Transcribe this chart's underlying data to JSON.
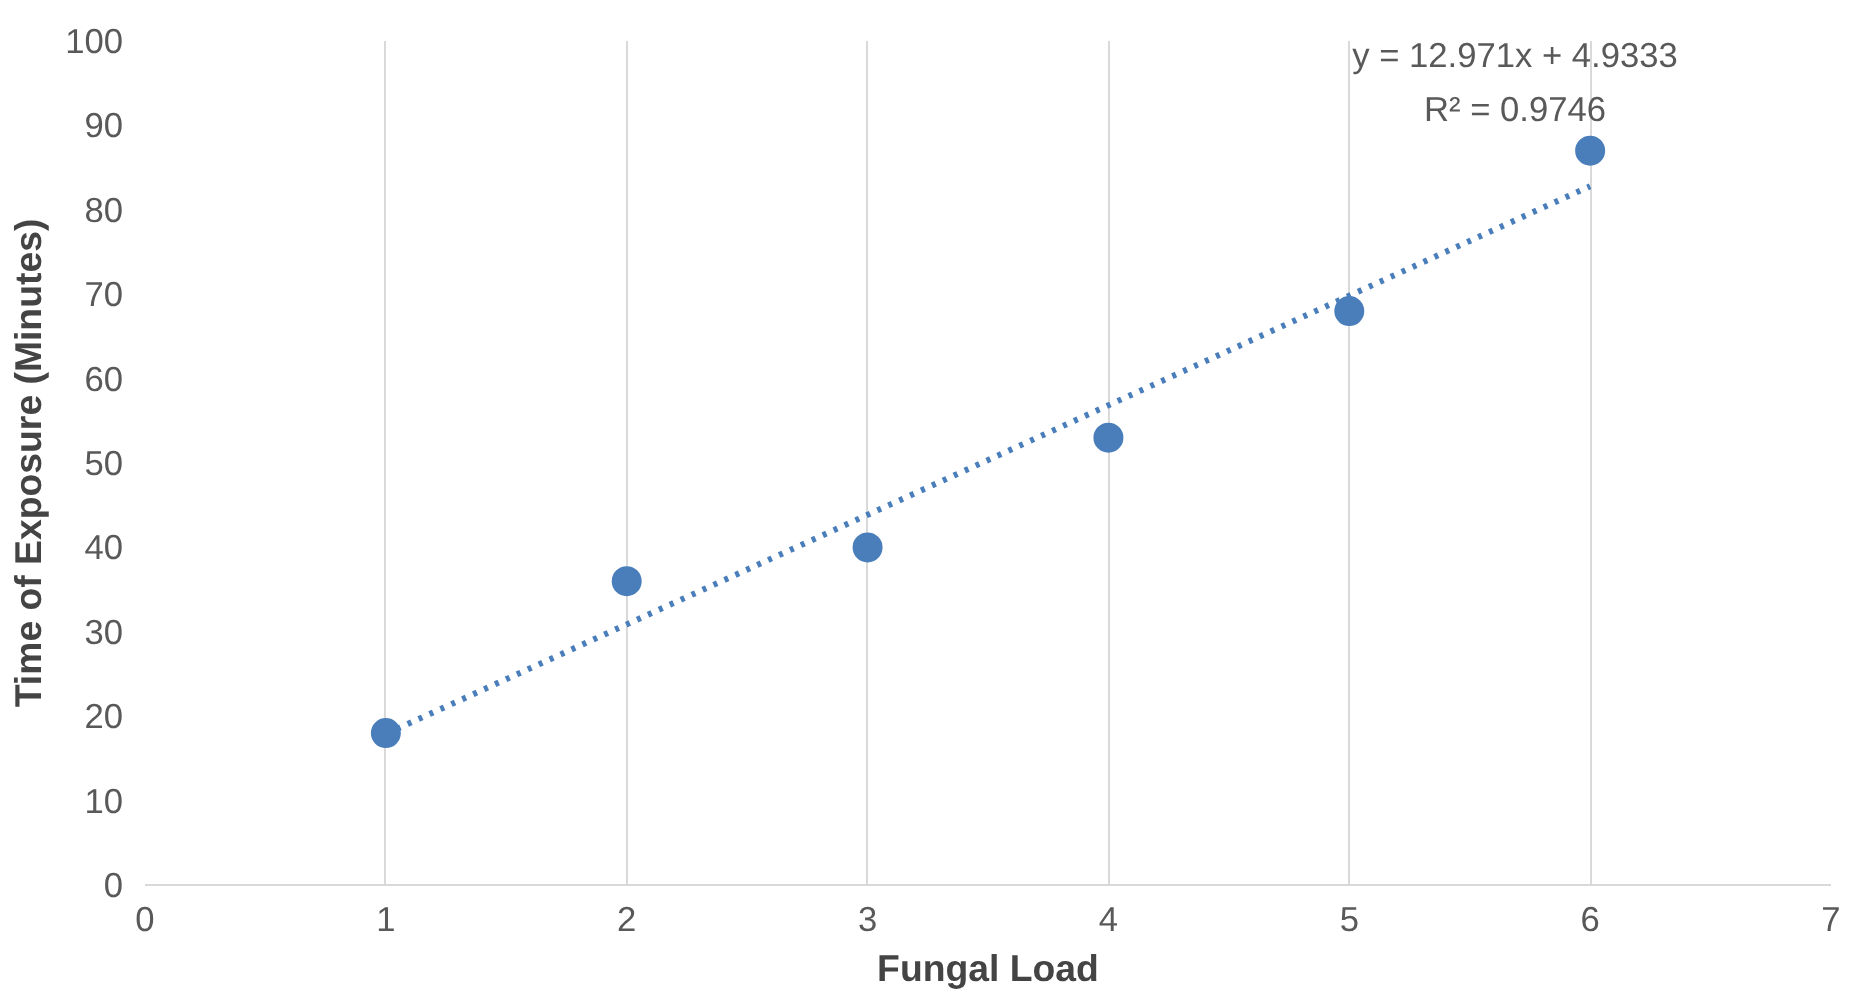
{
  "chart_data": {
    "type": "scatter",
    "xlabel": "Fungal Load",
    "ylabel": "Time of Exposure (Minutes)",
    "x": [
      1,
      2,
      3,
      4,
      5,
      6
    ],
    "series": [
      {
        "color": "#4a7ebb",
        "values": [
          18,
          36,
          40,
          53,
          68,
          87
        ],
        "marker": "circle"
      },
      {
        "type": "line",
        "color": "#4a7ebb",
        "x": [
          1,
          6
        ],
        "values": [
          17.9,
          82.8
        ],
        "line_style": "dotted"
      }
    ],
    "xlim": [
      0,
      7
    ],
    "xticks": [
      0,
      1,
      2,
      3,
      4,
      5,
      6,
      7
    ],
    "ylim": [
      0,
      100
    ],
    "yticks": [
      0,
      10,
      20,
      30,
      40,
      50,
      60,
      70,
      80,
      90,
      100
    ],
    "grid": "x",
    "annotations": [
      "y = 12.971x + 4.9333",
      "R² = 0.9746"
    ]
  }
}
